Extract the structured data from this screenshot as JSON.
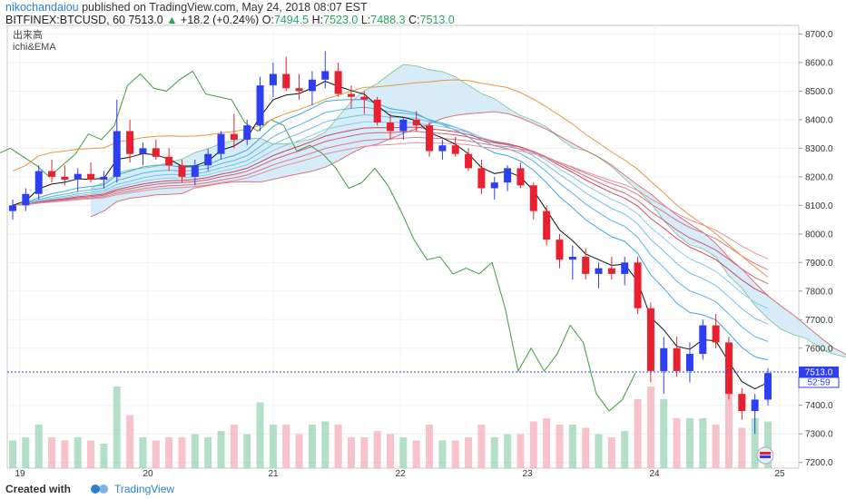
{
  "header": {
    "author": "nikochandaiou",
    "published_text": "published on TradingView.com, May 24, 2018 08:07 EST",
    "symbol": "BITFINEX:BTCUSD, 60",
    "last": "7513.0",
    "change_arrow": "▲",
    "change": "+18.2 (+0.24%)",
    "open_label": "O:",
    "open": "7494.5",
    "high_label": "H:",
    "high": "7523.0",
    "low_label": "L:",
    "low": "7488.3",
    "close_label": "C:",
    "close": "7513.0"
  },
  "indicators": {
    "volume_label": "出来高",
    "ichi_label": "ichi&EMA"
  },
  "footer": {
    "created_with": "Created with",
    "brand": "TradingView"
  },
  "colors": {
    "up_candle": "#2e3ef2",
    "down_candle": "#e8202f",
    "cloud": "#d2eaf7",
    "price_line": "#3344cc",
    "lagging_span": "#3d9a3d",
    "span_b": "#e0707a",
    "sma_orange": "#e8973a"
  },
  "chart_data": {
    "type": "candlestick",
    "x_ticks": [
      "19",
      "20",
      "21",
      "22",
      "23",
      "24",
      "25"
    ],
    "y_ticks": [
      "8700.0",
      "8600.0",
      "8500.0",
      "8400.0",
      "8300.0",
      "8200.0",
      "8100.0",
      "8000.0",
      "7900.0",
      "7800.0",
      "7700.0",
      "7600.0",
      "7500.0",
      "7400.0",
      "7300.0",
      "7200.0"
    ],
    "ylim": [
      7180,
      8730
    ],
    "current_price": "7513.0",
    "countdown": "52:59",
    "dates": [
      "2018-05-19",
      "2018-05-20",
      "2018-05-21",
      "2018-05-22",
      "2018-05-23",
      "2018-05-24",
      "2018-05-25"
    ],
    "ohlc": [
      [
        8080,
        8120,
        8050,
        8100
      ],
      [
        8100,
        8160,
        8080,
        8140
      ],
      [
        8140,
        8240,
        8120,
        8220
      ],
      [
        8220,
        8260,
        8180,
        8200
      ],
      [
        8200,
        8240,
        8170,
        8190
      ],
      [
        8190,
        8230,
        8150,
        8210
      ],
      [
        8210,
        8250,
        8180,
        8190
      ],
      [
        8190,
        8220,
        8160,
        8200
      ],
      [
        8200,
        8470,
        8180,
        8360
      ],
      [
        8360,
        8400,
        8250,
        8280
      ],
      [
        8280,
        8320,
        8240,
        8300
      ],
      [
        8300,
        8330,
        8260,
        8270
      ],
      [
        8270,
        8300,
        8220,
        8240
      ],
      [
        8240,
        8260,
        8180,
        8200
      ],
      [
        8200,
        8260,
        8170,
        8240
      ],
      [
        8240,
        8300,
        8220,
        8280
      ],
      [
        8280,
        8360,
        8260,
        8350
      ],
      [
        8350,
        8420,
        8300,
        8330
      ],
      [
        8330,
        8400,
        8310,
        8380
      ],
      [
        8380,
        8550,
        8360,
        8520
      ],
      [
        8520,
        8600,
        8480,
        8560
      ],
      [
        8560,
        8620,
        8500,
        8510
      ],
      [
        8510,
        8560,
        8470,
        8500
      ],
      [
        8500,
        8570,
        8450,
        8540
      ],
      [
        8540,
        8640,
        8510,
        8570
      ],
      [
        8570,
        8600,
        8480,
        8490
      ],
      [
        8490,
        8520,
        8440,
        8480
      ],
      [
        8480,
        8500,
        8420,
        8470
      ],
      [
        8470,
        8480,
        8380,
        8390
      ],
      [
        8390,
        8420,
        8330,
        8360
      ],
      [
        8360,
        8410,
        8330,
        8400
      ],
      [
        8400,
        8430,
        8360,
        8380
      ],
      [
        8380,
        8390,
        8270,
        8290
      ],
      [
        8290,
        8330,
        8260,
        8310
      ],
      [
        8310,
        8340,
        8270,
        8280
      ],
      [
        8280,
        8300,
        8220,
        8230
      ],
      [
        8230,
        8260,
        8140,
        8160
      ],
      [
        8160,
        8200,
        8120,
        8180
      ],
      [
        8180,
        8240,
        8150,
        8230
      ],
      [
        8230,
        8250,
        8160,
        8170
      ],
      [
        8170,
        8180,
        8050,
        8080
      ],
      [
        8080,
        8100,
        7960,
        7980
      ],
      [
        7980,
        8000,
        7880,
        7910
      ],
      [
        7910,
        7960,
        7840,
        7920
      ],
      [
        7920,
        7950,
        7840,
        7860
      ],
      [
        7860,
        7900,
        7810,
        7880
      ],
      [
        7880,
        7920,
        7840,
        7860
      ],
      [
        7860,
        7920,
        7820,
        7900
      ],
      [
        7900,
        7920,
        7720,
        7740
      ],
      [
        7740,
        7760,
        7480,
        7520
      ],
      [
        7520,
        7640,
        7440,
        7600
      ],
      [
        7600,
        7640,
        7500,
        7520
      ],
      [
        7520,
        7620,
        7480,
        7580
      ],
      [
        7580,
        7700,
        7560,
        7680
      ],
      [
        7680,
        7720,
        7600,
        7620
      ],
      [
        7620,
        7640,
        7420,
        7440
      ],
      [
        7440,
        7460,
        7350,
        7380
      ],
      [
        7380,
        7440,
        7300,
        7420
      ],
      [
        7420,
        7530,
        7400,
        7513
      ]
    ]
  }
}
